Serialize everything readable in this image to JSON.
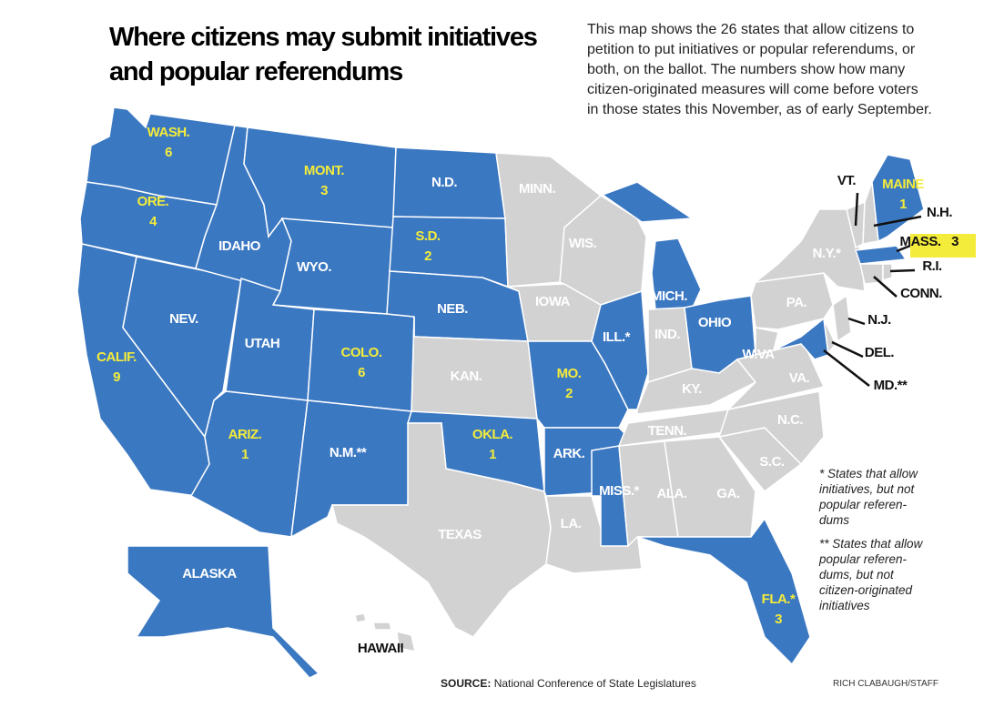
{
  "title_lines": [
    "Where citizens may submit initiatives",
    "and popular referendums"
  ],
  "description_lines": [
    "This map shows the 26 states that allow citizens to",
    "petition to put initiatives or popular referendums, or",
    "both, on the ballot. The numbers show how many",
    "citizen-originated measures will come before voters",
    "in those states this November, as of early September."
  ],
  "states": [
    {
      "label": "WASH.",
      "count": 6
    },
    {
      "label": "ORE.",
      "count": 4
    },
    {
      "label": "CALIF.",
      "count": 9
    },
    {
      "label": "MONT.",
      "count": 3
    },
    {
      "label": "N.D."
    },
    {
      "label": "S.D.",
      "count": 2
    },
    {
      "label": "IDAHO"
    },
    {
      "label": "WYO."
    },
    {
      "label": "NEB."
    },
    {
      "label": "NEV."
    },
    {
      "label": "UTAH"
    },
    {
      "label": "COLO.",
      "count": 6
    },
    {
      "label": "IOWA"
    },
    {
      "label": "ILL.*"
    },
    {
      "label": "MICH."
    },
    {
      "label": "OHIO"
    },
    {
      "label": "IND."
    },
    {
      "label": "KAN."
    },
    {
      "label": "MO.",
      "count": 2
    },
    {
      "label": "W.VA"
    },
    {
      "label": "VA."
    },
    {
      "label": "KY."
    },
    {
      "label": "ARIZ.",
      "count": 1
    },
    {
      "label": "N.M.**"
    },
    {
      "label": "OKLA.",
      "count": 1
    },
    {
      "label": "ARK."
    },
    {
      "label": "TENN."
    },
    {
      "label": "N.C."
    },
    {
      "label": "S.C."
    },
    {
      "label": "MISS.*"
    },
    {
      "label": "ALA."
    },
    {
      "label": "GA."
    },
    {
      "label": "LA."
    },
    {
      "label": "TEXAS"
    },
    {
      "label": "MINN."
    },
    {
      "label": "WIS."
    },
    {
      "label": "PA."
    },
    {
      "label": "N.Y.*"
    },
    {
      "label": "FLA.*",
      "count": 3
    },
    {
      "label": "ALASKA"
    },
    {
      "label": "HAWAII"
    },
    {
      "label": "VT."
    },
    {
      "label": "MAINE",
      "count": 1
    },
    {
      "label": "N.H."
    },
    {
      "label": "MASS.",
      "count": 3
    },
    {
      "label": "R.I."
    },
    {
      "label": "CONN."
    },
    {
      "label": "N.J."
    },
    {
      "label": "DEL."
    },
    {
      "label": "MD.**"
    }
  ],
  "footnotes": [
    [
      "* States that allow",
      "initiatives, but not",
      "popular referen-",
      "dums"
    ],
    [
      "** States that allow",
      "popular referen-",
      "dums, but not",
      "citizen-originated",
      "initiatives"
    ]
  ],
  "source": {
    "label": "SOURCE:",
    "text": "National Conference of State Legislatures"
  },
  "credit": "RICH CLABAUGH/STAFF"
}
